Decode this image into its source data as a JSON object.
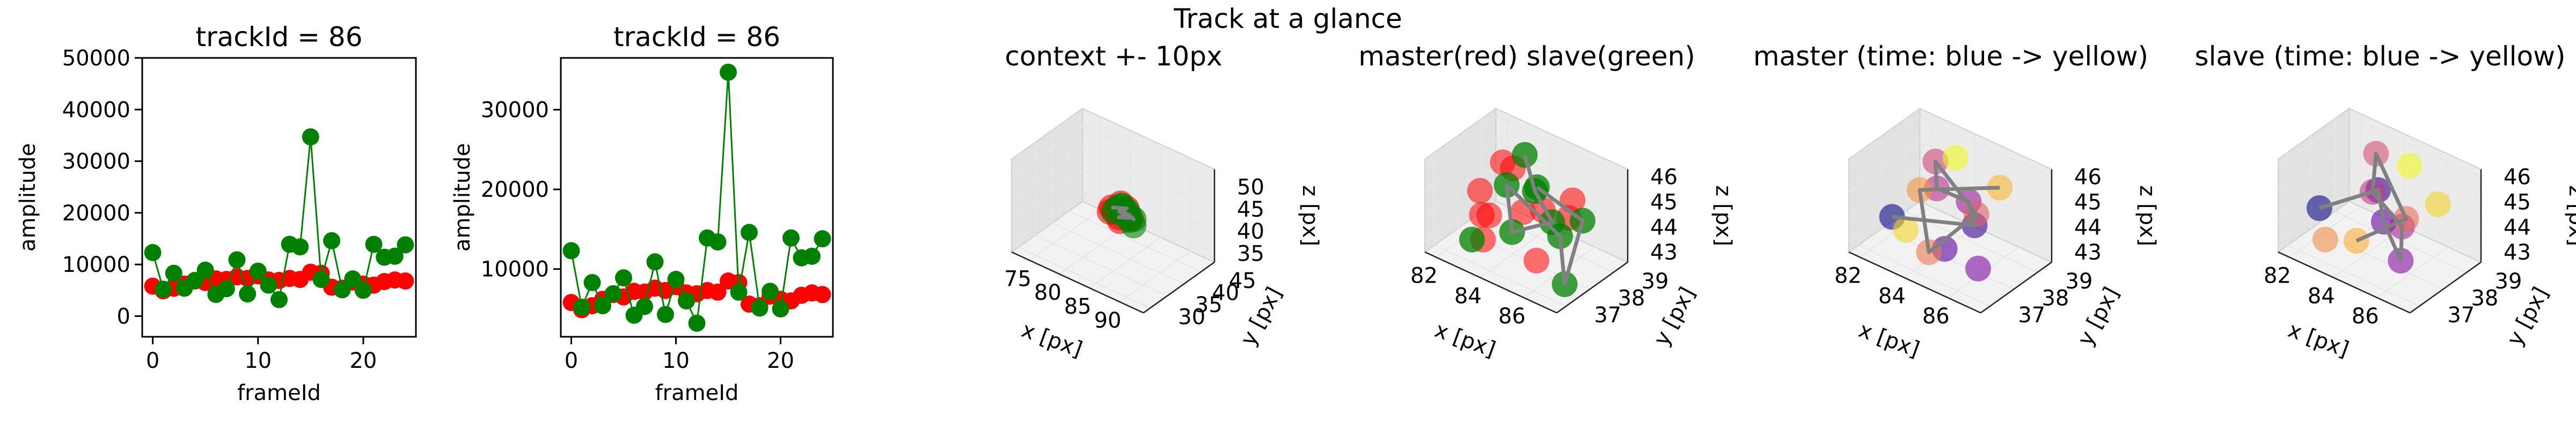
{
  "figure_title": "Track at a glance",
  "chart_data": [
    {
      "type": "scatter",
      "title": "trackId = 86",
      "xlabel": "frameId",
      "ylabel": "amplitude",
      "xlim": [
        -1,
        25
      ],
      "ylim": [
        -4000,
        50000
      ],
      "xticks": [
        0,
        10,
        20
      ],
      "yticks": [
        0,
        10000,
        20000,
        30000,
        40000,
        50000
      ],
      "series": [
        {
          "name": "red",
          "color": "#ff0000",
          "line": false,
          "x": [
            0,
            1,
            2,
            3,
            4,
            5,
            6,
            7,
            8,
            9,
            10,
            11,
            12,
            13,
            14,
            15,
            16,
            17,
            18,
            19,
            20,
            21,
            22,
            23,
            24
          ],
          "values": [
            5800,
            4900,
            5400,
            6200,
            6800,
            6500,
            7200,
            7100,
            7600,
            7300,
            7800,
            7000,
            6900,
            7300,
            7100,
            8500,
            8300,
            5600,
            5400,
            6600,
            6200,
            6000,
            6700,
            7000,
            6800
          ]
        },
        {
          "name": "green",
          "color": "#008000",
          "line": true,
          "x": [
            0,
            1,
            2,
            3,
            4,
            5,
            6,
            7,
            8,
            9,
            10,
            11,
            12,
            13,
            14,
            15,
            16,
            17,
            18,
            19,
            20,
            21,
            22,
            23,
            24
          ],
          "values": [
            12300,
            5200,
            8300,
            5400,
            6900,
            8900,
            4200,
            5300,
            10900,
            4300,
            8700,
            6000,
            3200,
            13900,
            13400,
            34700,
            7100,
            14600,
            5100,
            7200,
            5000,
            13900,
            11400,
            11600,
            13800
          ]
        }
      ]
    },
    {
      "type": "scatter",
      "title": "trackId = 86",
      "xlabel": "frameId",
      "ylabel": "amplitude",
      "xlim": [
        -1,
        25
      ],
      "ylim": [
        1500,
        36500
      ],
      "xticks": [
        0,
        10,
        20
      ],
      "yticks": [
        10000,
        20000,
        30000
      ],
      "series": [
        {
          "name": "red",
          "color": "#ff0000",
          "line": false,
          "x": [
            0,
            1,
            2,
            3,
            4,
            5,
            6,
            7,
            8,
            9,
            10,
            11,
            12,
            13,
            14,
            15,
            16,
            17,
            18,
            19,
            20,
            21,
            22,
            23,
            24
          ],
          "values": [
            5800,
            4900,
            5400,
            6200,
            6800,
            6500,
            7200,
            7100,
            7600,
            7300,
            7800,
            7000,
            6900,
            7300,
            7100,
            8500,
            8300,
            5600,
            5400,
            6600,
            6200,
            6000,
            6700,
            7000,
            6800
          ]
        },
        {
          "name": "green",
          "color": "#008000",
          "line": true,
          "x": [
            0,
            1,
            2,
            3,
            4,
            5,
            6,
            7,
            8,
            9,
            10,
            11,
            12,
            13,
            14,
            15,
            16,
            17,
            18,
            19,
            20,
            21,
            22,
            23,
            24
          ],
          "values": [
            12300,
            5200,
            8300,
            5400,
            6900,
            8900,
            4200,
            5300,
            10900,
            4300,
            8700,
            6000,
            3200,
            13900,
            13400,
            34700,
            7100,
            14600,
            5100,
            7200,
            5000,
            13900,
            11400,
            11600,
            13800
          ]
        }
      ]
    },
    {
      "type": "scatter3d",
      "title": "context +- 10px",
      "xlabel": "x [px]",
      "ylabel": "y [px]",
      "zlabel": "z [px]",
      "xlim": [
        72,
        94
      ],
      "ylim": [
        28,
        49
      ],
      "zlim": [
        33,
        54
      ],
      "xticks": [
        75,
        80,
        85,
        90
      ],
      "yticks": [
        30,
        35,
        40,
        45
      ],
      "zticks": [
        35,
        40,
        45,
        50
      ],
      "series": [
        {
          "name": "master",
          "color": "#ff0000",
          "alpha": 0.6,
          "points": [
            [
              83,
              38,
              44.5
            ],
            [
              84,
              38.5,
              44
            ],
            [
              85,
              39,
              45
            ],
            [
              84.5,
              37.5,
              43.5
            ],
            [
              83.5,
              38,
              44.2
            ],
            [
              86,
              38,
              44
            ],
            [
              85,
              37,
              43.2
            ],
            [
              84,
              39,
              45.5
            ],
            [
              86,
              38.5,
              43.5
            ],
            [
              83,
              37.5,
              43.8
            ],
            [
              84.5,
              38.2,
              44.8
            ]
          ]
        },
        {
          "name": "slave",
          "color": "#008000",
          "alpha": 0.6,
          "points": [
            [
              84,
              38,
              45
            ],
            [
              85,
              39,
              44.5
            ],
            [
              86,
              38,
              43.5
            ],
            [
              87,
              37.5,
              43.2
            ],
            [
              84.5,
              38.5,
              45.5
            ],
            [
              85.5,
              38.8,
              44
            ],
            [
              83.5,
              37.8,
              44
            ],
            [
              86.5,
              38.4,
              43.8
            ],
            [
              85,
              37.6,
              44.6
            ],
            [
              84.2,
              38.9,
              45.2
            ]
          ]
        },
        {
          "name": "path",
          "color": "#808080",
          "line": true,
          "points": [
            [
              83,
              38,
              44.5
            ],
            [
              85,
              39,
              45
            ],
            [
              84,
              38.5,
              44
            ],
            [
              86,
              38,
              44
            ],
            [
              84.5,
              37.5,
              43.5
            ],
            [
              85.5,
              38.8,
              44
            ],
            [
              86.5,
              38.4,
              43.8
            ],
            [
              84.5,
              38.2,
              44.8
            ]
          ]
        }
      ]
    },
    {
      "type": "scatter3d",
      "title": "master(red) slave(green)",
      "xlabel": "x [px]",
      "ylabel": "y [px]",
      "zlabel": "z [px]",
      "xlim": [
        81.5,
        87.5
      ],
      "ylim": [
        36.6,
        39.6
      ],
      "zlim": [
        42.6,
        46.3
      ],
      "xticks": [
        82,
        84,
        86
      ],
      "yticks": [
        37,
        38,
        39
      ],
      "zticks": [
        43,
        44,
        45,
        46
      ],
      "series": [
        {
          "name": "master",
          "color": "#ff0000",
          "alpha": 0.55,
          "points": [
            [
              82.5,
              38,
              44.5
            ],
            [
              83,
              38.5,
              45.5
            ],
            [
              84,
              38,
              46
            ],
            [
              85,
              37.5,
              45
            ],
            [
              86,
              38.5,
              44.5
            ],
            [
              83.5,
              37.2,
              43.5
            ],
            [
              84.5,
              38.8,
              44
            ],
            [
              85.5,
              37.6,
              43.2
            ],
            [
              82.8,
              37.8,
              43.8
            ],
            [
              86.5,
              38.2,
              45.6
            ],
            [
              84,
              37,
              44.8
            ]
          ]
        },
        {
          "name": "slave",
          "color": "#008000",
          "alpha": 0.75,
          "points": [
            [
              84,
              38.5,
              46.2
            ],
            [
              85,
              38,
              45.5
            ],
            [
              86,
              37.8,
              44.8
            ],
            [
              84.5,
              37.5,
              44
            ],
            [
              83.5,
              38.2,
              45
            ],
            [
              85.5,
              38.6,
              43.5
            ],
            [
              87,
              37.4,
              43
            ],
            [
              86.2,
              38.9,
              44.2
            ],
            [
              83,
              37.2,
              43.3
            ],
            [
              85.2,
              37.9,
              45.8
            ]
          ]
        },
        {
          "name": "path",
          "color": "#808080",
          "line": true,
          "points": [
            [
              84,
              38.5,
              46.2
            ],
            [
              85,
              38,
              45.5
            ],
            [
              86,
              37.8,
              44.8
            ],
            [
              84.5,
              37.5,
              44
            ],
            [
              83.5,
              38.2,
              45
            ],
            [
              85.5,
              38.6,
              43.5
            ],
            [
              87,
              37.4,
              43
            ],
            [
              86.2,
              38.9,
              44.2
            ],
            [
              85.2,
              37.9,
              45.8
            ]
          ]
        }
      ]
    },
    {
      "type": "scatter3d",
      "title": "master (time: blue -> yellow)",
      "xlabel": "x [px]",
      "ylabel": "y [px]",
      "zlabel": "z [px]",
      "xlim": [
        81.5,
        87.5
      ],
      "ylim": [
        36.6,
        39.6
      ],
      "zlim": [
        42.6,
        46.3
      ],
      "xticks": [
        82,
        84,
        86
      ],
      "yticks": [
        37,
        38,
        39
      ],
      "zticks": [
        43,
        44,
        45,
        46
      ],
      "series": [
        {
          "name": "master-time",
          "colormap": [
            "#0d0887",
            "#6a00a8",
            "#b12a90",
            "#e16462",
            "#fca636",
            "#f0f921"
          ],
          "alpha": 0.6,
          "points": [
            [
              82.5,
              37.5,
              43.8
            ],
            [
              85.5,
              38.2,
              44.2
            ],
            [
              85,
              37.4,
              43.6
            ],
            [
              86.2,
              37.7,
              43.1
            ],
            [
              84.8,
              38.6,
              44.6
            ],
            [
              84,
              38,
              45.2
            ],
            [
              83.5,
              38.4,
              45.8
            ],
            [
              85.8,
              38,
              44.9
            ],
            [
              84.5,
              37.2,
              43.4
            ],
            [
              83,
              38.2,
              44.6
            ],
            [
              86,
              38.8,
              45.5
            ],
            [
              82.8,
              37.8,
              43.2
            ],
            [
              84.2,
              38.6,
              46.1
            ]
          ]
        },
        {
          "name": "path",
          "color": "#808080",
          "line": true,
          "points": [
            [
              82.5,
              37.5,
              43.8
            ],
            [
              85.5,
              38.2,
              44.2
            ],
            [
              84.8,
              38.6,
              44.6
            ],
            [
              84,
              38,
              45.2
            ],
            [
              83.5,
              38.4,
              45.8
            ],
            [
              85.8,
              38,
              44.9
            ],
            [
              84.5,
              37.2,
              43.4
            ],
            [
              83,
              38.2,
              44.6
            ],
            [
              86,
              38.8,
              45.5
            ]
          ]
        }
      ]
    },
    {
      "type": "scatter3d",
      "title": "slave (time: blue -> yellow)",
      "xlabel": "x [px]",
      "ylabel": "y [px]",
      "zlabel": "z [px]",
      "xlim": [
        81.5,
        87.5
      ],
      "ylim": [
        36.6,
        39.6
      ],
      "zlim": [
        42.6,
        46.3
      ],
      "xticks": [
        82,
        84,
        86
      ],
      "yticks": [
        37,
        38,
        39
      ],
      "zticks": [
        43,
        44,
        45,
        46
      ],
      "series": [
        {
          "name": "slave-time",
          "colormap": [
            "#0d0887",
            "#6a00a8",
            "#b12a90",
            "#e16462",
            "#fca636",
            "#f0f921"
          ],
          "alpha": 0.6,
          "points": [
            [
              82.3,
              37.6,
              44
            ],
            [
              84,
              38.5,
              44.8
            ],
            [
              84.8,
              38,
              44.2
            ],
            [
              86,
              37.6,
              43.4
            ],
            [
              85.2,
              38.4,
              43.9
            ],
            [
              84.5,
              37.8,
              45.4
            ],
            [
              83.8,
              38.6,
              46.1
            ],
            [
              85.6,
              38.2,
              44.5
            ],
            [
              83,
              37.2,
              43.3
            ],
            [
              84.2,
              37.4,
              43.6
            ],
            [
              86.4,
              38.8,
              45
            ],
            [
              85,
              38.9,
              45.9
            ]
          ]
        },
        {
          "name": "path",
          "color": "#808080",
          "line": true,
          "points": [
            [
              82.3,
              37.6,
              44
            ],
            [
              84,
              38.5,
              44.8
            ],
            [
              84.8,
              38,
              44.2
            ],
            [
              86,
              37.6,
              43.4
            ],
            [
              85.2,
              38.4,
              43.9
            ],
            [
              84.5,
              37.8,
              45.4
            ],
            [
              83.8,
              38.6,
              46.1
            ],
            [
              85.6,
              38.2,
              44.5
            ],
            [
              84.2,
              37.4,
              43.6
            ]
          ]
        }
      ]
    }
  ]
}
